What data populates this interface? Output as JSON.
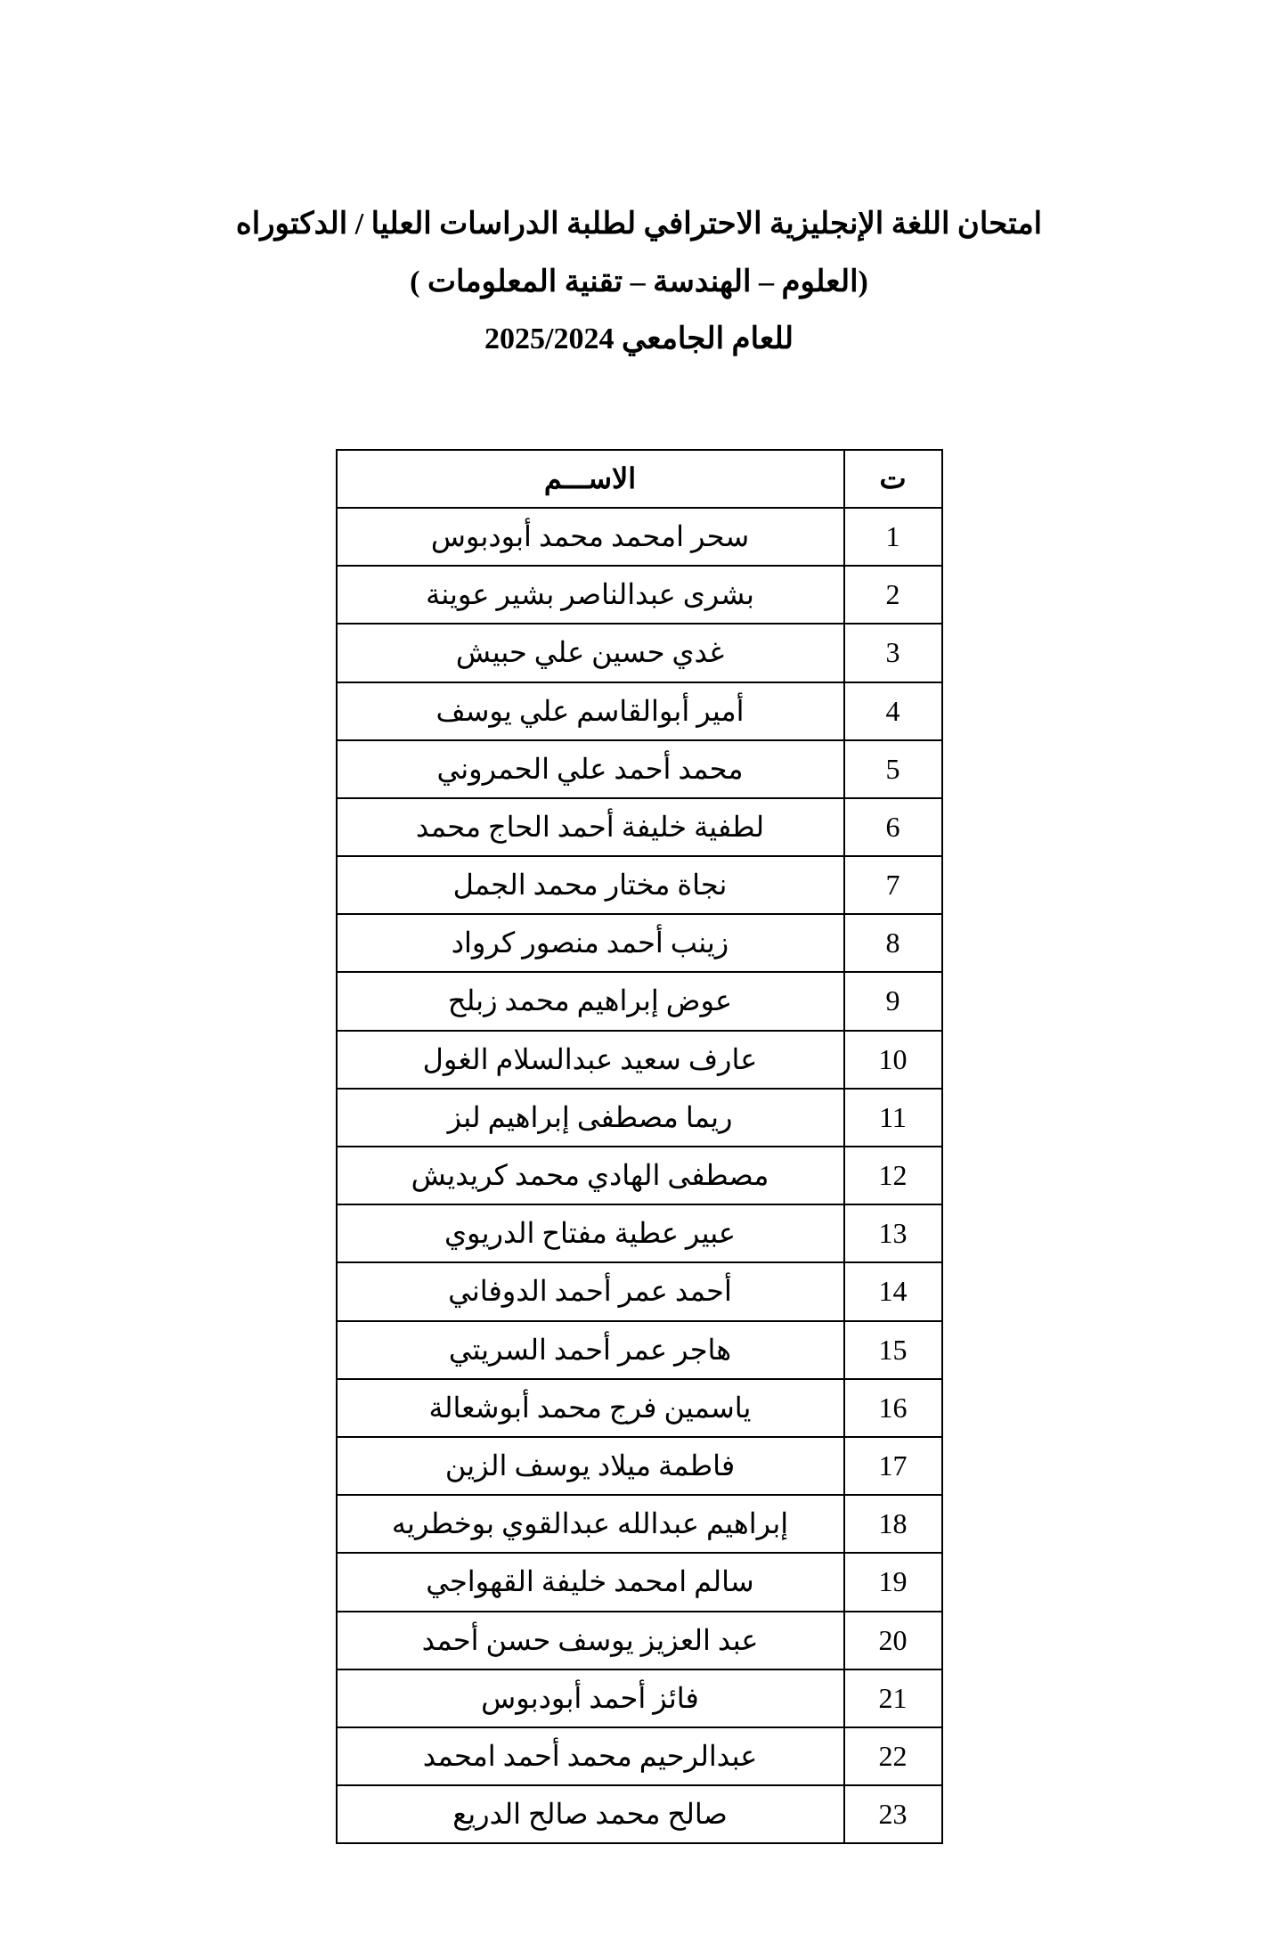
{
  "header": {
    "line1": "امتحان اللغة الإنجليزية الاحترافي لطلبة الدراسات العليا / الدكتوراه",
    "line2": "(العلوم – الهندسة – تقنية المعلومات )",
    "line3": "للعام الجامعي 2025/2024"
  },
  "table": {
    "columns": {
      "index": "ت",
      "name": "الاســـم"
    },
    "rows": [
      {
        "n": "1",
        "name": "سحر امحمد محمد أبودبوس"
      },
      {
        "n": "2",
        "name": "بشرى عبدالناصر بشير عوينة"
      },
      {
        "n": "3",
        "name": "غدي حسين علي حبيش"
      },
      {
        "n": "4",
        "name": "أمير أبوالقاسم علي يوسف"
      },
      {
        "n": "5",
        "name": "محمد أحمد علي الحمروني"
      },
      {
        "n": "6",
        "name": "لطفية خليفة أحمد الحاج محمد"
      },
      {
        "n": "7",
        "name": "نجاة مختار محمد الجمل"
      },
      {
        "n": "8",
        "name": "زينب أحمد منصور كرواد"
      },
      {
        "n": "9",
        "name": "عوض إبراهيم محمد زبلح"
      },
      {
        "n": "10",
        "name": "عارف سعيد عبدالسلام الغول"
      },
      {
        "n": "11",
        "name": "ريما مصطفى إبراهيم لبز"
      },
      {
        "n": "12",
        "name": "مصطفى الهادي محمد كريديش"
      },
      {
        "n": "13",
        "name": "عبير عطية مفتاح الدريوي"
      },
      {
        "n": "14",
        "name": "أحمد عمر أحمد الدوفاني"
      },
      {
        "n": "15",
        "name": "هاجر عمر أحمد السريتي"
      },
      {
        "n": "16",
        "name": "ياسمين فرج محمد أبوشعالة"
      },
      {
        "n": "17",
        "name": "فاطمة ميلاد يوسف الزين"
      },
      {
        "n": "18",
        "name": "إبراهيم عبدالله عبدالقوي بوخطريه"
      },
      {
        "n": "19",
        "name": "سالم امحمد خليفة القهواجي"
      },
      {
        "n": "20",
        "name": "عبد العزيز يوسف حسن أحمد"
      },
      {
        "n": "21",
        "name": "فائز أحمد أبودبوس"
      },
      {
        "n": "22",
        "name": "عبدالرحيم محمد أحمد امحمد"
      },
      {
        "n": "23",
        "name": "صالح محمد صالح الدريع"
      }
    ]
  }
}
